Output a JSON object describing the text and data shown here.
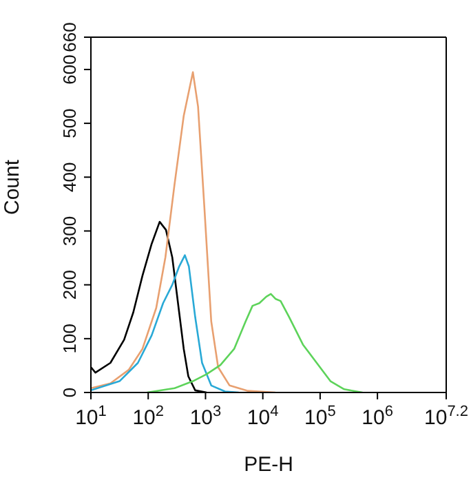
{
  "chart_data": {
    "type": "line",
    "xlabel": "PE-H",
    "ylabel": "Count",
    "log": "x",
    "marker": "none",
    "line_style": "solid",
    "xlim": [
      10,
      15848932
    ],
    "ylim": [
      0,
      660
    ],
    "xticks": [
      {
        "value": 10,
        "label": "10$^{1}$"
      },
      {
        "value": 100,
        "label": "10$^{2}$"
      },
      {
        "value": 1000,
        "label": "10$^{3}$"
      },
      {
        "value": 10000,
        "label": "10$^{4}$"
      },
      {
        "value": 100000,
        "label": "10$^{5}$"
      },
      {
        "value": 1000000,
        "label": "10$^{6}$"
      },
      {
        "value": 15848932,
        "label": "10$^{7.2}$"
      }
    ],
    "yticks": [
      0,
      100,
      200,
      300,
      400,
      500,
      600,
      660
    ],
    "series": [
      {
        "color": "#000000",
        "x": [
          10,
          12,
          21.9,
          38,
          55,
          79.4,
          114.8,
          158.5,
          204.2,
          263,
          346.7,
          416.9,
          501.2,
          660.7,
          1047
        ],
        "values": [
          47,
          37,
          55,
          98,
          149,
          217,
          276,
          317,
          302,
          251,
          149,
          81,
          30,
          4,
          0
        ]
      },
      {
        "color": "#e8a070",
        "x": [
          10,
          21.9,
          45.7,
          79.4,
          138,
          199.5,
          288.4,
          416.9,
          602.6,
          741.3,
          955,
          1259,
          1660,
          2630,
          5495,
          16596
        ],
        "values": [
          8,
          17,
          42,
          81,
          157,
          251,
          387,
          514,
          595,
          531,
          344,
          132,
          47,
          13,
          3,
          0
        ]
      },
      {
        "color": "#29a9d6",
        "x": [
          10,
          31.6,
          66.1,
          114.8,
          182,
          263,
          346.7,
          436.5,
          512.9,
          660.7,
          871,
          1259,
          2188,
          3802
        ],
        "values": [
          4,
          21,
          55,
          106,
          166,
          200,
          234,
          255,
          234,
          140,
          55,
          13,
          2,
          0
        ]
      },
      {
        "color": "#5dd35a",
        "x": [
          95.5,
          288.4,
          602.6,
          1047,
          1820,
          3162,
          5012,
          6607,
          8710,
          11482,
          13804,
          16596,
          20417,
          28840,
          50119,
          87096,
          151356,
          263027,
          549541
        ],
        "values": [
          0,
          8,
          21,
          34,
          51,
          81,
          132,
          161,
          166,
          178,
          183,
          174,
          170,
          140,
          89,
          55,
          21,
          6,
          0
        ]
      }
    ]
  }
}
